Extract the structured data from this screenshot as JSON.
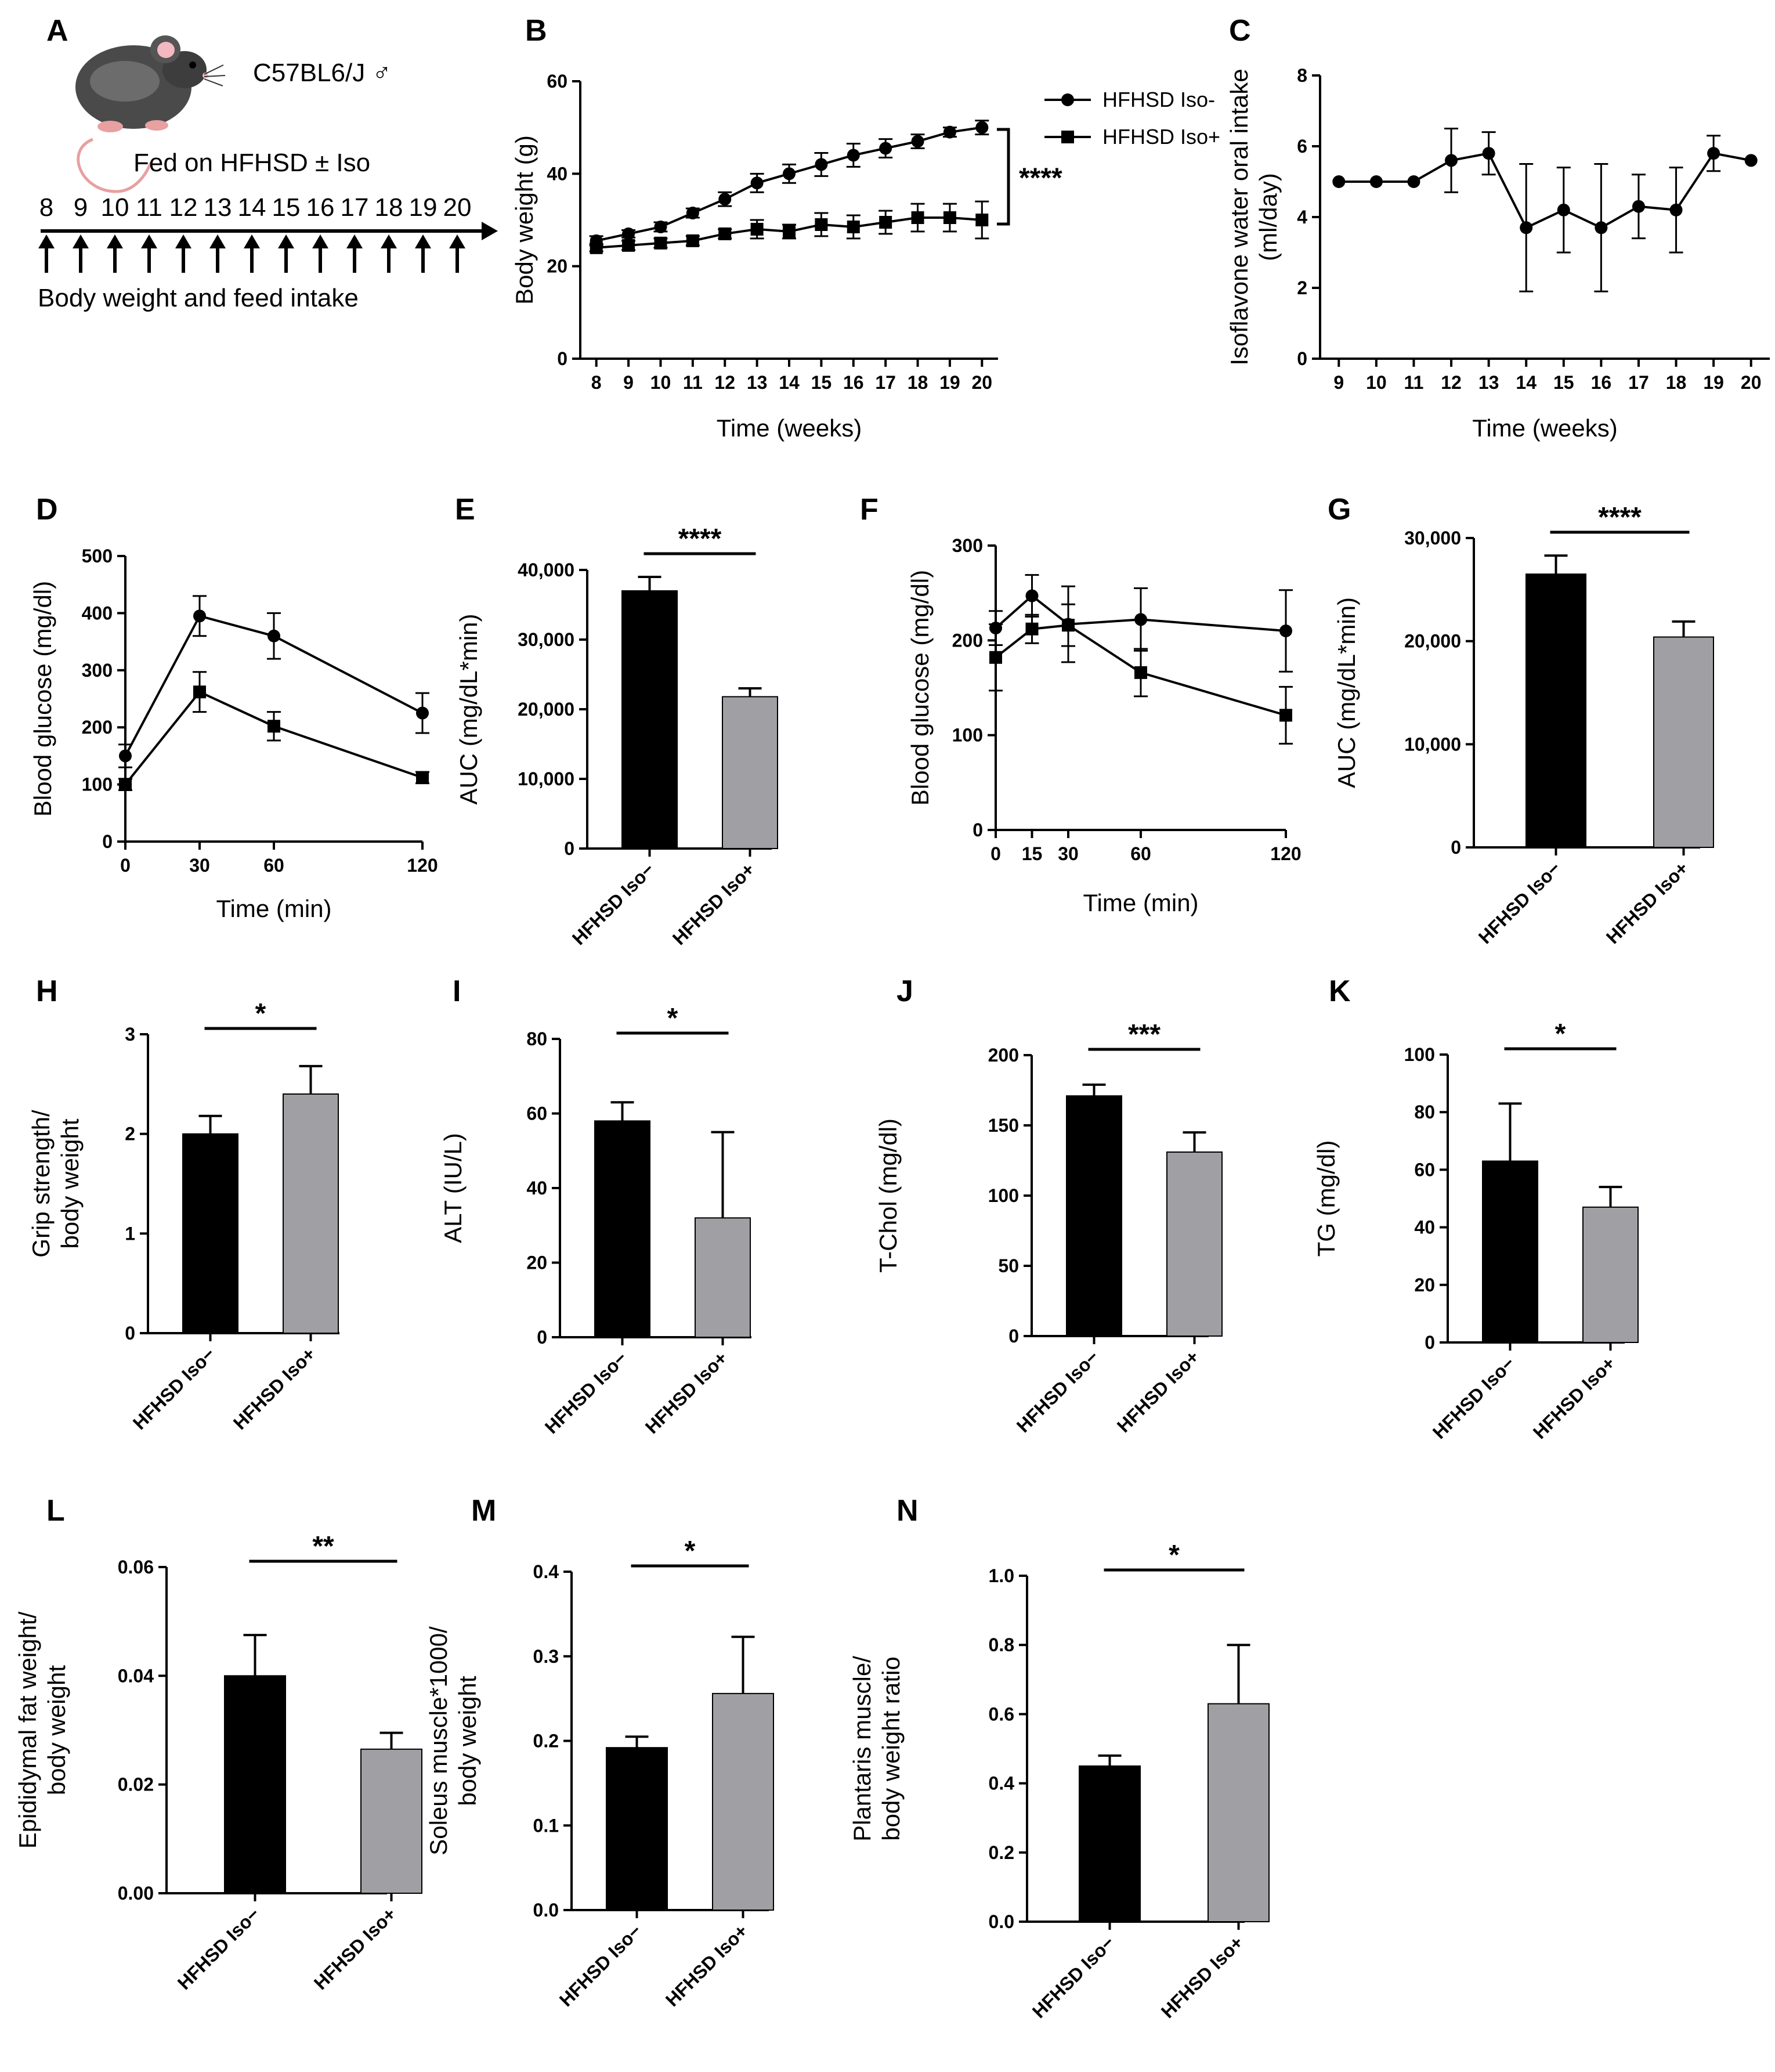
{
  "colors": {
    "black": "#000000",
    "gray": "#a0a0a4"
  },
  "panelA": {
    "letter": "A",
    "strain": "C57BL6/J ♂",
    "fed": "Fed on HFHSD ± Iso",
    "weeks": [
      "8",
      "9",
      "10",
      "11",
      "12",
      "13",
      "14",
      "15",
      "16",
      "17",
      "18",
      "19",
      "20"
    ],
    "bottom": "Body weight  and feed intake",
    "mouse_icon": "mouse-icon"
  },
  "chart_data": [
    {
      "id": "B",
      "type": "line",
      "letter": "B",
      "xlabel": "Time (weeks)",
      "ylabel": "Body weight (g)",
      "ylim": [
        0,
        60
      ],
      "yticks": [
        "0",
        "20",
        "40",
        "60"
      ],
      "xticks": [
        "8",
        "9",
        "10",
        "11",
        "12",
        "13",
        "14",
        "15",
        "16",
        "17",
        "18",
        "19",
        "20"
      ],
      "x": [
        8,
        9,
        10,
        11,
        12,
        13,
        14,
        15,
        16,
        17,
        18,
        19,
        20
      ],
      "series": [
        {
          "name": "HFHSD Iso-",
          "marker": "circle",
          "values": [
            25.5,
            27,
            28.5,
            31.5,
            34.5,
            38,
            40,
            42,
            44,
            45.5,
            47,
            49,
            50
          ],
          "errors": [
            1,
            0.8,
            1,
            1,
            1.5,
            2,
            2,
            2.5,
            2.5,
            2,
            1.5,
            1,
            1.5
          ]
        },
        {
          "name": "HFHSD Iso+",
          "marker": "square",
          "values": [
            24,
            24.5,
            25,
            25.5,
            27,
            28,
            27.5,
            29,
            28.5,
            29.5,
            30.5,
            30.5,
            30
          ],
          "errors": [
            0.8,
            1,
            1,
            1,
            1,
            2,
            1.5,
            2.5,
            2.5,
            2.5,
            3,
            3,
            4
          ]
        }
      ],
      "significance": "****"
    },
    {
      "id": "C",
      "type": "line",
      "letter": "C",
      "xlabel": "Time (weeks)",
      "ylabel": "Isoflavone  water  oral intake (ml/day)",
      "ylabel_lines": [
        "Isoflavone  water  oral intake",
        "(ml/day)"
      ],
      "ylim": [
        0,
        8
      ],
      "yticks": [
        "0",
        "2",
        "4",
        "6",
        "8"
      ],
      "xticks": [
        "9",
        "10",
        "11",
        "12",
        "13",
        "14",
        "15",
        "16",
        "17",
        "18",
        "19",
        "20"
      ],
      "x": [
        9,
        10,
        11,
        12,
        13,
        14,
        15,
        16,
        17,
        18,
        19,
        20
      ],
      "series": [
        {
          "name": "Isoflavone water",
          "marker": "circle",
          "values": [
            5,
            5,
            5,
            5.6,
            5.8,
            3.7,
            4.2,
            3.7,
            4.3,
            4.2,
            5.8,
            5.6
          ],
          "errors": [
            0,
            0,
            0,
            0.9,
            0.6,
            1.8,
            1.2,
            1.8,
            0.9,
            1.2,
            0.5,
            0
          ]
        }
      ]
    },
    {
      "id": "D",
      "type": "line",
      "letter": "D",
      "xlabel": "Time (min)",
      "ylabel": "Blood glucose (mg/dl)",
      "ylim": [
        0,
        500
      ],
      "yticks": [
        "0",
        "100",
        "200",
        "300",
        "400",
        "500"
      ],
      "xticks": [
        "0",
        "30",
        "60",
        "120"
      ],
      "x_ticks_values": [
        0,
        30,
        60,
        120
      ],
      "xlim": [
        0,
        120
      ],
      "x": [
        0,
        30,
        60,
        120
      ],
      "series": [
        {
          "name": "HFHSD Iso-",
          "marker": "circle",
          "values": [
            150,
            395,
            360,
            225
          ],
          "errors": [
            20,
            35,
            40,
            35
          ]
        },
        {
          "name": "HFHSD Iso+",
          "marker": "square",
          "values": [
            100,
            262,
            202,
            112
          ],
          "errors": [
            10,
            35,
            25,
            10
          ]
        }
      ]
    },
    {
      "id": "E",
      "type": "bar",
      "letter": "E",
      "ylabel": "AUC (mg/dL*min)",
      "categories": [
        "HFHSD Iso−",
        "HFHSD Iso+"
      ],
      "values": [
        37000,
        21800
      ],
      "errors": [
        2000,
        1200
      ],
      "ylim": [
        0,
        40000
      ],
      "yticks": [
        "0",
        "10,000",
        "20,000",
        "30,000",
        "40,000"
      ],
      "significance": "****"
    },
    {
      "id": "F",
      "type": "line",
      "letter": "F",
      "xlabel": "Time (min)",
      "ylabel": "Blood glucose  (mg/dl)",
      "ylim": [
        0,
        300
      ],
      "yticks": [
        "0",
        "100",
        "200",
        "300"
      ],
      "xticks": [
        "0",
        "15",
        "30",
        "60",
        "120"
      ],
      "x_ticks_values": [
        0,
        15,
        30,
        60,
        120
      ],
      "xlim": [
        0,
        120
      ],
      "x": [
        0,
        15,
        30,
        60,
        120
      ],
      "series": [
        {
          "name": "HFHSD Iso-",
          "marker": "circle",
          "values": [
            213,
            247,
            217,
            222,
            210
          ],
          "errors": [
            18,
            22,
            40,
            33,
            43
          ]
        },
        {
          "name": "HFHSD Iso+",
          "marker": "square",
          "values": [
            182,
            212,
            216,
            166,
            121
          ],
          "errors": [
            35,
            15,
            22,
            25,
            30
          ]
        }
      ]
    },
    {
      "id": "G",
      "type": "bar",
      "letter": "G",
      "ylabel": "AUC (mg/dL*min)",
      "categories": [
        "HFHSD Iso−",
        "HFHSD Iso+"
      ],
      "values": [
        26500,
        20400
      ],
      "errors": [
        1800,
        1500
      ],
      "ylim": [
        0,
        30000
      ],
      "yticks": [
        "0",
        "10,000",
        "20,000",
        "30,000"
      ],
      "significance": "****"
    },
    {
      "id": "H",
      "type": "bar",
      "letter": "H",
      "ylabel": "Grip strength/ body weight",
      "ylabel_lines": [
        "Grip strength/",
        "body weight"
      ],
      "categories": [
        "HFHSD Iso−",
        "HFHSD Iso+"
      ],
      "values": [
        2.0,
        2.4
      ],
      "errors": [
        0.18,
        0.28
      ],
      "ylim": [
        0,
        3
      ],
      "yticks": [
        "0",
        "1",
        "2",
        "3"
      ],
      "significance": "*"
    },
    {
      "id": "I",
      "type": "bar",
      "letter": "I",
      "ylabel": "ALT (IU/L)",
      "categories": [
        "HFHSD Iso−",
        "HFHSD Iso+"
      ],
      "values": [
        58,
        32
      ],
      "errors": [
        5,
        23
      ],
      "ylim": [
        0,
        80
      ],
      "yticks": [
        "0",
        "20",
        "40",
        "60",
        "80"
      ],
      "significance": "*"
    },
    {
      "id": "J",
      "type": "bar",
      "letter": "J",
      "ylabel": "T-Chol (mg/dl)",
      "categories": [
        "HFHSD Iso−",
        "HFHSD Iso+"
      ],
      "values": [
        171,
        131
      ],
      "errors": [
        8,
        14
      ],
      "ylim": [
        0,
        200
      ],
      "yticks": [
        "0",
        "50",
        "100",
        "150",
        "200"
      ],
      "significance": "***"
    },
    {
      "id": "K",
      "type": "bar",
      "letter": "K",
      "ylabel": "TG (mg/dl)",
      "categories": [
        "HFHSD Iso−",
        "HFHSD Iso+"
      ],
      "values": [
        63,
        47
      ],
      "errors": [
        20,
        7
      ],
      "ylim": [
        0,
        100
      ],
      "yticks": [
        "0",
        "20",
        "40",
        "60",
        "80",
        "100"
      ],
      "significance": "*"
    },
    {
      "id": "L",
      "type": "bar",
      "letter": "L",
      "ylabel": "Epididymal fat weight/ body weight",
      "ylabel_lines": [
        "Epididymal fat weight/",
        "body weight"
      ],
      "categories": [
        "HFHSD Iso−",
        "HFHSD Iso+"
      ],
      "values": [
        0.04,
        0.0265
      ],
      "errors": [
        0.0075,
        0.003
      ],
      "ylim": [
        0,
        0.06
      ],
      "yticks": [
        "0.00",
        "0.02",
        "0.04",
        "0.06"
      ],
      "significance": "**"
    },
    {
      "id": "M",
      "type": "bar",
      "letter": "M",
      "ylabel": "Soleus muscle*1000/ body weight",
      "ylabel_lines": [
        "Soleus muscle*1000/",
        "body weight"
      ],
      "categories": [
        "HFHSD Iso−",
        "HFHSD Iso+"
      ],
      "values": [
        0.192,
        0.256
      ],
      "errors": [
        0.013,
        0.067
      ],
      "ylim": [
        0,
        0.4
      ],
      "yticks": [
        "0.0",
        "0.1",
        "0.2",
        "0.3",
        "0.4"
      ],
      "significance": "*"
    },
    {
      "id": "N",
      "type": "bar",
      "letter": "N",
      "ylabel": "Plantaris muscle/ body weight ratio",
      "ylabel_lines": [
        "Plantaris muscle/",
        "body weight ratio"
      ],
      "categories": [
        "HFHSD Iso−",
        "HFHSD Iso+"
      ],
      "values": [
        0.45,
        0.63
      ],
      "errors": [
        0.03,
        0.17
      ],
      "ylim": [
        0,
        1.0
      ],
      "yticks": [
        "0.0",
        "0.2",
        "0.4",
        "0.6",
        "0.8",
        "1.0"
      ],
      "significance": "*"
    }
  ]
}
